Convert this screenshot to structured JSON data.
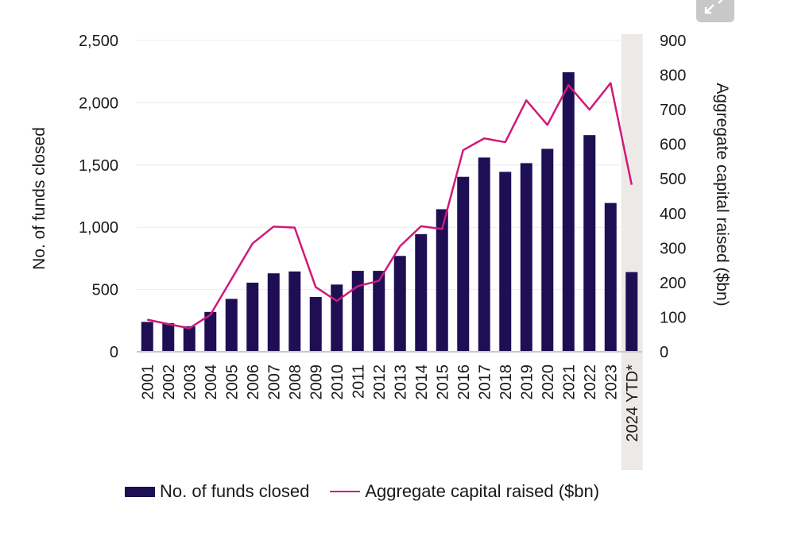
{
  "chart_data": {
    "type": "bar+line",
    "categories": [
      "2001",
      "2002",
      "2003",
      "2004",
      "2005",
      "2006",
      "2007",
      "2008",
      "2009",
      "2010",
      "2011",
      "2012",
      "2013",
      "2014",
      "2015",
      "2016",
      "2017",
      "2018",
      "2019",
      "2020",
      "2021",
      "2022",
      "2023",
      "2024 YTD*"
    ],
    "series": [
      {
        "name": "No. of funds closed",
        "type": "bar",
        "axis": "left",
        "color": "#1e0f54",
        "values": [
          240,
          230,
          205,
          320,
          425,
          555,
          630,
          645,
          440,
          540,
          650,
          650,
          770,
          945,
          1145,
          1405,
          1560,
          1445,
          1515,
          1630,
          2245,
          1740,
          1195,
          640
        ]
      },
      {
        "name": "Aggregate capital raised ($bn)",
        "type": "line",
        "axis": "right",
        "color": "#d1197a",
        "values": [
          93,
          80,
          68,
          107,
          210,
          313,
          362,
          359,
          187,
          147,
          190,
          205,
          305,
          363,
          355,
          583,
          617,
          606,
          727,
          656,
          771,
          700,
          777,
          483
        ]
      }
    ],
    "ylabel": "No. of funds closed",
    "ylim": [
      0,
      2500
    ],
    "yticks": [
      "0",
      "500",
      "1,000",
      "1,500",
      "2,000",
      "2,500"
    ],
    "y2label": "Aggregate capital raised ($bn)",
    "y2lim": [
      0,
      900
    ],
    "y2ticks": [
      "0",
      "100",
      "200",
      "300",
      "400",
      "500",
      "600",
      "700",
      "800",
      "900"
    ],
    "grid": true,
    "highlight_category": "2024 YTD*",
    "highlight_color": "#ede9e6",
    "legend_position": "bottom"
  },
  "legend": {
    "bars_label": "No. of funds closed",
    "line_label": "Aggregate capital raised ($bn)"
  },
  "expand_icon": "expand-icon"
}
